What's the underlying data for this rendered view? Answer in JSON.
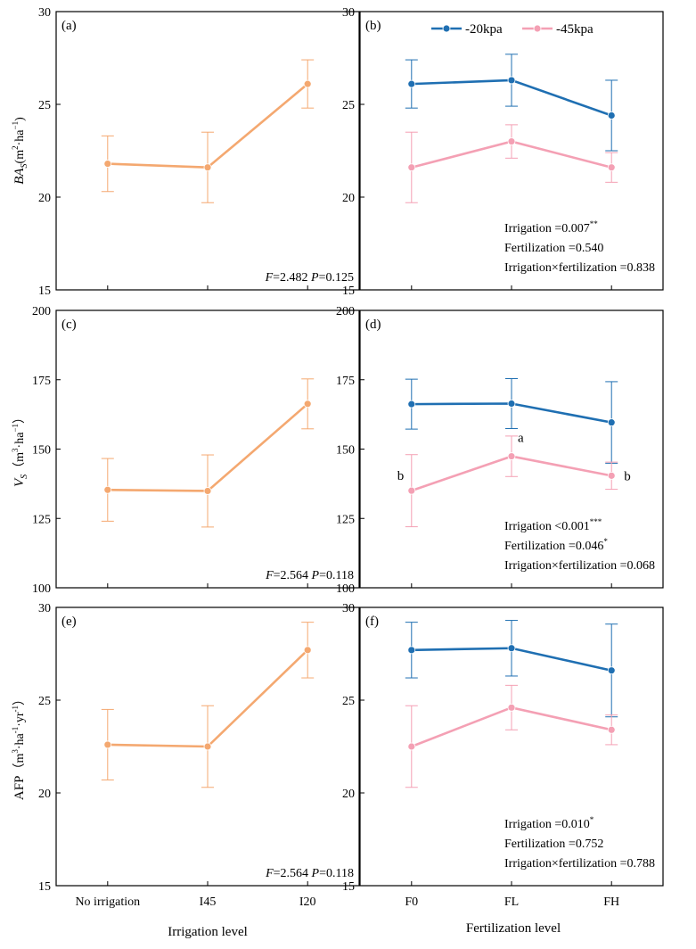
{
  "colors": {
    "single": "#F4A870",
    "w20": "#1F6FB2",
    "w45": "#F4A0B4",
    "axis": "#000000"
  },
  "legend": [
    "-20kpa",
    "-45kpa"
  ],
  "x_label_left": "Irrigation level",
  "x_label_right": "Fertilization level",
  "chart_data": [
    {
      "id": "a",
      "panel_label": "(a)",
      "type": "line",
      "categories": [
        "No irrigation",
        "I45",
        "I20"
      ],
      "ylim": [
        15,
        30
      ],
      "yticks": [
        "15",
        "20",
        "25",
        "30"
      ],
      "ylabel_main": "BA",
      "ylabel_sub": "S",
      "ylabel_unit_open": "(m",
      "ylabel_unit_mid": "·ha",
      "ylabel_unit_close": ")",
      "ylabel_sup1": "2",
      "ylabel_sup2": "−1",
      "series": [
        {
          "name": "irrigation",
          "values": [
            21.8,
            21.6,
            26.1
          ],
          "err": [
            1.5,
            1.9,
            1.3
          ]
        }
      ],
      "stat": {
        "f_label": "F",
        "f_value": "=2.482 ",
        "p_label": "P",
        "p_value": "=0.125"
      }
    },
    {
      "id": "b",
      "panel_label": "(b)",
      "type": "line",
      "categories": [
        "F0",
        "FL",
        "FH"
      ],
      "ylim": [
        15,
        30
      ],
      "yticks": [
        "15",
        "20",
        "25",
        "30"
      ],
      "series": [
        {
          "name": "-20kpa",
          "values": [
            26.1,
            26.3,
            24.4
          ],
          "err": [
            1.3,
            1.4,
            1.9
          ]
        },
        {
          "name": "-45kpa",
          "values": [
            21.6,
            23.0,
            21.6
          ],
          "err": [
            1.9,
            0.9,
            0.8
          ]
        }
      ],
      "stats": [
        {
          "text": "Irrigation =0.007",
          "sup": "**"
        },
        {
          "text": "Fertilization =0.540",
          "sup": ""
        },
        {
          "text": "Irrigation×fertilization =0.838",
          "sup": ""
        }
      ]
    },
    {
      "id": "c",
      "panel_label": "(c)",
      "type": "line",
      "categories": [
        "No irrigation",
        "I45",
        "I20"
      ],
      "ylim": [
        100,
        200
      ],
      "yticks": [
        "100",
        "125",
        "150",
        "175",
        "200"
      ],
      "ylabel_main": "V",
      "ylabel_sub": "S",
      "ylabel_unit_open": "（m",
      "ylabel_unit_mid": "·ha",
      "ylabel_unit_close": "）",
      "ylabel_sup1": "3",
      "ylabel_sup2": "−1",
      "series": [
        {
          "name": "irrigation",
          "values": [
            135.3,
            134.9,
            166.3
          ],
          "err": [
            11.3,
            13.0,
            9.0
          ]
        }
      ],
      "stat": {
        "f_label": "F",
        "f_value": "=2.564 ",
        "p_label": "P",
        "p_value": "=0.118"
      }
    },
    {
      "id": "d",
      "panel_label": "(d)",
      "type": "line",
      "categories": [
        "F0",
        "FL",
        "FH"
      ],
      "ylim": [
        100,
        200
      ],
      "yticks": [
        "100",
        "125",
        "150",
        "175",
        "200"
      ],
      "series": [
        {
          "name": "-20kpa",
          "values": [
            166.2,
            166.4,
            159.6
          ],
          "err": [
            9.0,
            9.0,
            14.7
          ]
        },
        {
          "name": "-45kpa",
          "values": [
            135.0,
            147.4,
            140.4
          ],
          "err": [
            13.0,
            7.3,
            4.9
          ]
        }
      ],
      "letters": [
        "b",
        "a",
        "b"
      ],
      "stats": [
        {
          "text": "Irrigation <0.001",
          "sup": "***"
        },
        {
          "text": "Fertilization =0.046",
          "sup": "*"
        },
        {
          "text": "Irrigation×fertilization =0.068",
          "sup": ""
        }
      ]
    },
    {
      "id": "e",
      "panel_label": "(e)",
      "type": "line",
      "categories": [
        "No irrigation",
        "I45",
        "I20"
      ],
      "ylim": [
        15,
        30
      ],
      "yticks": [
        "15",
        "20",
        "25",
        "30"
      ],
      "ylabel_main": "AFP",
      "ylabel_sub": "",
      "ylabel_unit_open": "（m",
      "ylabel_unit_mid": "·ha",
      "ylabel_unit_close": "）",
      "ylabel_sup1": "3",
      "ylabel_sup2": "-1",
      "ylabel_unit_tail": "·yr",
      "ylabel_sup3": "-1",
      "series": [
        {
          "name": "irrigation",
          "values": [
            22.6,
            22.5,
            27.7
          ],
          "err": [
            1.9,
            2.2,
            1.5
          ]
        }
      ],
      "stat": {
        "f_label": "F",
        "f_value": "=2.564 ",
        "p_label": "P",
        "p_value": "=0.118"
      }
    },
    {
      "id": "f",
      "panel_label": "(f)",
      "type": "line",
      "categories": [
        "F0",
        "FL",
        "FH"
      ],
      "ylim": [
        15,
        30
      ],
      "yticks": [
        "15",
        "20",
        "25",
        "30"
      ],
      "series": [
        {
          "name": "-20kpa",
          "values": [
            27.7,
            27.8,
            26.6
          ],
          "err": [
            1.5,
            1.5,
            2.5
          ]
        },
        {
          "name": "-45kpa",
          "values": [
            22.5,
            24.6,
            23.4
          ],
          "err": [
            2.2,
            1.2,
            0.8
          ]
        }
      ],
      "stats": [
        {
          "text": "Irrigation =0.010",
          "sup": "*"
        },
        {
          "text": "Fertilization =0.752",
          "sup": ""
        },
        {
          "text": "Irrigation×fertilization =0.788",
          "sup": ""
        }
      ]
    }
  ]
}
